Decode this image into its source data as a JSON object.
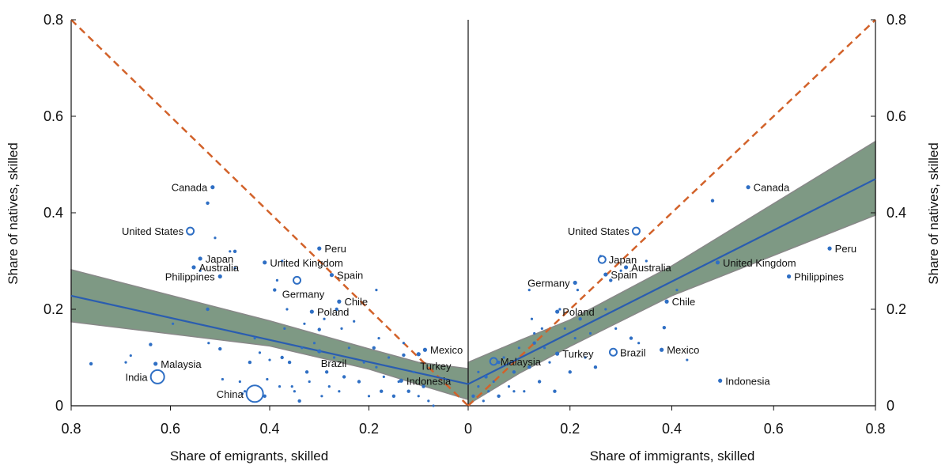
{
  "chart_data": {
    "type": "scatter",
    "colors": {
      "points": "#2f6fc4",
      "fit_line": "#2a5db0",
      "band": "#7e9984",
      "band_edge": "#888888",
      "diagonal": "#d2622a"
    },
    "left_panel": {
      "xlabel": "Share of emigrants, skilled",
      "ylabel": "Share of natives, skilled",
      "xlim": [
        0.8,
        0
      ],
      "ylim": [
        0,
        0.8
      ],
      "xticks": [
        "0.8",
        "0.6",
        "0.4",
        "0.2",
        "0"
      ],
      "yticks": [
        "0",
        "0.2",
        "0.4",
        "0.6",
        "0.8"
      ],
      "fit": {
        "x": [
          0.8,
          0.0
        ],
        "y": [
          0.228,
          0.045
        ]
      },
      "band_upper": {
        "x": [
          0.8,
          0.4,
          0.2,
          0.1,
          0.0
        ],
        "y": [
          0.282,
          0.176,
          0.118,
          0.09,
          0.077
        ]
      },
      "band_lower": {
        "x": [
          0.8,
          0.4,
          0.2,
          0.1,
          0.0
        ],
        "y": [
          0.174,
          0.124,
          0.076,
          0.044,
          0.013
        ]
      },
      "diagonal": {
        "x": [
          0.8,
          0.0
        ],
        "y": [
          0.8,
          0.0
        ]
      },
      "labeled_points": [
        {
          "label": "Canada",
          "x": 0.515,
          "y": 0.453,
          "size": "small",
          "anchor": "left"
        },
        {
          "label": "United States",
          "x": 0.56,
          "y": 0.362,
          "size": "medium",
          "anchor": "left"
        },
        {
          "label": "Japan",
          "x": 0.54,
          "y": 0.305,
          "size": "small",
          "anchor": "right"
        },
        {
          "label": "Australia",
          "x": 0.553,
          "y": 0.287,
          "size": "small",
          "anchor": "right"
        },
        {
          "label": "Philippines",
          "x": 0.5,
          "y": 0.268,
          "size": "small",
          "anchor": "left"
        },
        {
          "label": "Peru",
          "x": 0.3,
          "y": 0.326,
          "size": "small",
          "anchor": "right"
        },
        {
          "label": "United Kingdom",
          "x": 0.41,
          "y": 0.297,
          "size": "small",
          "anchor": "right"
        },
        {
          "label": "Spain",
          "x": 0.275,
          "y": 0.271,
          "size": "small",
          "anchor": "right"
        },
        {
          "label": "Germany",
          "x": 0.345,
          "y": 0.26,
          "size": "medium",
          "anchor": "below"
        },
        {
          "label": "Chile",
          "x": 0.26,
          "y": 0.216,
          "size": "small",
          "anchor": "right"
        },
        {
          "label": "Poland",
          "x": 0.315,
          "y": 0.195,
          "size": "small",
          "anchor": "right"
        },
        {
          "label": "Brazil",
          "x": 0.3,
          "y": 0.113,
          "size": "small",
          "anchor": "belowright"
        },
        {
          "label": "Mexico",
          "x": 0.087,
          "y": 0.116,
          "size": "small",
          "anchor": "right"
        },
        {
          "label": "Turkey",
          "x": 0.1,
          "y": 0.107,
          "size": "small",
          "anchor": "belowright"
        },
        {
          "label": "Malaysia",
          "x": 0.63,
          "y": 0.087,
          "size": "small",
          "anchor": "right"
        },
        {
          "label": "India",
          "x": 0.626,
          "y": 0.06,
          "size": "large",
          "anchor": "left"
        },
        {
          "label": "China",
          "x": 0.43,
          "y": 0.025,
          "size": "xlarge",
          "anchor": "left"
        },
        {
          "label": "Indonesia",
          "x": 0.135,
          "y": 0.052,
          "size": "small",
          "anchor": "right"
        }
      ]
    },
    "right_panel": {
      "xlabel": "Share of immigrants, skilled",
      "ylabel": "Share of natives, skilled",
      "xlim": [
        0,
        0.8
      ],
      "ylim": [
        0,
        0.8
      ],
      "xticks": [
        "0",
        "0.2",
        "0.4",
        "0.6",
        "0.8"
      ],
      "yticks": [
        "0",
        "0.2",
        "0.4",
        "0.6",
        "0.8"
      ],
      "fit": {
        "x": [
          0.0,
          0.8
        ],
        "y": [
          0.045,
          0.47
        ]
      },
      "band_upper": {
        "x": [
          0.0,
          0.1,
          0.2,
          0.4,
          0.8
        ],
        "y": [
          0.09,
          0.135,
          0.178,
          0.29,
          0.548
        ]
      },
      "band_lower": {
        "x": [
          0.0,
          0.1,
          0.2,
          0.4,
          0.8
        ],
        "y": [
          0.003,
          0.067,
          0.123,
          0.228,
          0.395
        ]
      },
      "diagonal": {
        "x": [
          0.0,
          0.8
        ],
        "y": [
          0.0,
          0.8
        ]
      },
      "labeled_points": [
        {
          "label": "Canada",
          "x": 0.55,
          "y": 0.453,
          "size": "small",
          "anchor": "right"
        },
        {
          "label": "United States",
          "x": 0.33,
          "y": 0.362,
          "size": "medium",
          "anchor": "left"
        },
        {
          "label": "Japan",
          "x": 0.263,
          "y": 0.303,
          "size": "medium",
          "anchor": "right"
        },
        {
          "label": "Australia",
          "x": 0.31,
          "y": 0.287,
          "size": "small",
          "anchor": "right"
        },
        {
          "label": "Spain",
          "x": 0.27,
          "y": 0.272,
          "size": "small",
          "anchor": "right"
        },
        {
          "label": "Germany",
          "x": 0.21,
          "y": 0.255,
          "size": "small",
          "anchor": "left"
        },
        {
          "label": "Peru",
          "x": 0.71,
          "y": 0.326,
          "size": "small",
          "anchor": "right"
        },
        {
          "label": "United Kingdom",
          "x": 0.49,
          "y": 0.297,
          "size": "small",
          "anchor": "right"
        },
        {
          "label": "Philippines",
          "x": 0.63,
          "y": 0.268,
          "size": "small",
          "anchor": "right"
        },
        {
          "label": "Chile",
          "x": 0.39,
          "y": 0.216,
          "size": "small",
          "anchor": "right"
        },
        {
          "label": "Poland",
          "x": 0.175,
          "y": 0.195,
          "size": "small",
          "anchor": "right"
        },
        {
          "label": "Turkey",
          "x": 0.175,
          "y": 0.108,
          "size": "small",
          "anchor": "right"
        },
        {
          "label": "Brazil",
          "x": 0.285,
          "y": 0.111,
          "size": "medium",
          "anchor": "right"
        },
        {
          "label": "Mexico",
          "x": 0.38,
          "y": 0.116,
          "size": "small",
          "anchor": "right"
        },
        {
          "label": "Malaysia",
          "x": 0.05,
          "y": 0.092,
          "size": "medium",
          "anchor": "right"
        },
        {
          "label": "Indonesia",
          "x": 0.495,
          "y": 0.052,
          "size": "small",
          "anchor": "right"
        }
      ]
    },
    "unlabeled_points_left": [
      [
        0.76,
        0.087
      ],
      [
        0.69,
        0.09
      ],
      [
        0.68,
        0.104
      ],
      [
        0.64,
        0.127
      ],
      [
        0.595,
        0.17
      ],
      [
        0.54,
        0.28
      ],
      [
        0.525,
        0.2
      ],
      [
        0.523,
        0.13
      ],
      [
        0.51,
        0.348
      ],
      [
        0.5,
        0.118
      ],
      [
        0.495,
        0.055
      ],
      [
        0.48,
        0.32
      ],
      [
        0.47,
        0.32
      ],
      [
        0.46,
        0.05
      ],
      [
        0.45,
        0.03
      ],
      [
        0.44,
        0.09
      ],
      [
        0.43,
        0.14
      ],
      [
        0.42,
        0.11
      ],
      [
        0.41,
        0.02
      ],
      [
        0.405,
        0.055
      ],
      [
        0.4,
        0.095
      ],
      [
        0.39,
        0.24
      ],
      [
        0.385,
        0.26
      ],
      [
        0.38,
        0.04
      ],
      [
        0.375,
        0.1
      ],
      [
        0.37,
        0.16
      ],
      [
        0.365,
        0.2
      ],
      [
        0.36,
        0.09
      ],
      [
        0.355,
        0.04
      ],
      [
        0.35,
        0.03
      ],
      [
        0.34,
        0.01
      ],
      [
        0.335,
        0.12
      ],
      [
        0.33,
        0.17
      ],
      [
        0.325,
        0.07
      ],
      [
        0.32,
        0.05
      ],
      [
        0.31,
        0.13
      ],
      [
        0.3,
        0.158
      ],
      [
        0.295,
        0.02
      ],
      [
        0.29,
        0.18
      ],
      [
        0.285,
        0.07
      ],
      [
        0.28,
        0.04
      ],
      [
        0.27,
        0.1
      ],
      [
        0.265,
        0.2
      ],
      [
        0.26,
        0.03
      ],
      [
        0.255,
        0.16
      ],
      [
        0.25,
        0.06
      ],
      [
        0.24,
        0.12
      ],
      [
        0.23,
        0.175
      ],
      [
        0.22,
        0.05
      ],
      [
        0.21,
        0.09
      ],
      [
        0.2,
        0.02
      ],
      [
        0.19,
        0.12
      ],
      [
        0.185,
        0.08
      ],
      [
        0.18,
        0.14
      ],
      [
        0.175,
        0.03
      ],
      [
        0.17,
        0.06
      ],
      [
        0.16,
        0.1
      ],
      [
        0.15,
        0.02
      ],
      [
        0.14,
        0.05
      ],
      [
        0.13,
        0.13
      ],
      [
        0.12,
        0.03
      ],
      [
        0.11,
        0.07
      ],
      [
        0.1,
        0.02
      ],
      [
        0.09,
        0.04
      ],
      [
        0.08,
        0.01
      ],
      [
        0.07,
        0.0
      ],
      [
        0.13,
        0.105
      ],
      [
        0.185,
        0.24
      ],
      [
        0.47,
        0.285
      ],
      [
        0.525,
        0.42
      ],
      [
        0.375,
        0.3
      ],
      [
        0.455,
        0.025
      ]
    ],
    "unlabeled_points_right": [
      [
        0.01,
        0.02
      ],
      [
        0.02,
        0.04
      ],
      [
        0.03,
        0.01
      ],
      [
        0.035,
        0.06
      ],
      [
        0.04,
        0.03
      ],
      [
        0.05,
        0.05
      ],
      [
        0.06,
        0.02
      ],
      [
        0.07,
        0.1
      ],
      [
        0.08,
        0.04
      ],
      [
        0.09,
        0.07
      ],
      [
        0.1,
        0.12
      ],
      [
        0.11,
        0.03
      ],
      [
        0.12,
        0.08
      ],
      [
        0.125,
        0.18
      ],
      [
        0.13,
        0.15
      ],
      [
        0.14,
        0.05
      ],
      [
        0.15,
        0.12
      ],
      [
        0.16,
        0.09
      ],
      [
        0.17,
        0.03
      ],
      [
        0.18,
        0.2
      ],
      [
        0.19,
        0.16
      ],
      [
        0.2,
        0.07
      ],
      [
        0.21,
        0.14
      ],
      [
        0.215,
        0.24
      ],
      [
        0.22,
        0.18
      ],
      [
        0.23,
        0.1
      ],
      [
        0.24,
        0.15
      ],
      [
        0.25,
        0.08
      ],
      [
        0.26,
        0.31
      ],
      [
        0.27,
        0.2
      ],
      [
        0.28,
        0.26
      ],
      [
        0.29,
        0.16
      ],
      [
        0.3,
        0.28
      ],
      [
        0.32,
        0.14
      ],
      [
        0.335,
        0.13
      ],
      [
        0.35,
        0.3
      ],
      [
        0.385,
        0.162
      ],
      [
        0.41,
        0.24
      ],
      [
        0.43,
        0.095
      ],
      [
        0.48,
        0.425
      ],
      [
        0.12,
        0.24
      ],
      [
        0.145,
        0.16
      ],
      [
        0.13,
        0.13
      ],
      [
        0.09,
        0.03
      ],
      [
        0.02,
        0.07
      ],
      [
        0.06,
        0.09
      ]
    ]
  }
}
